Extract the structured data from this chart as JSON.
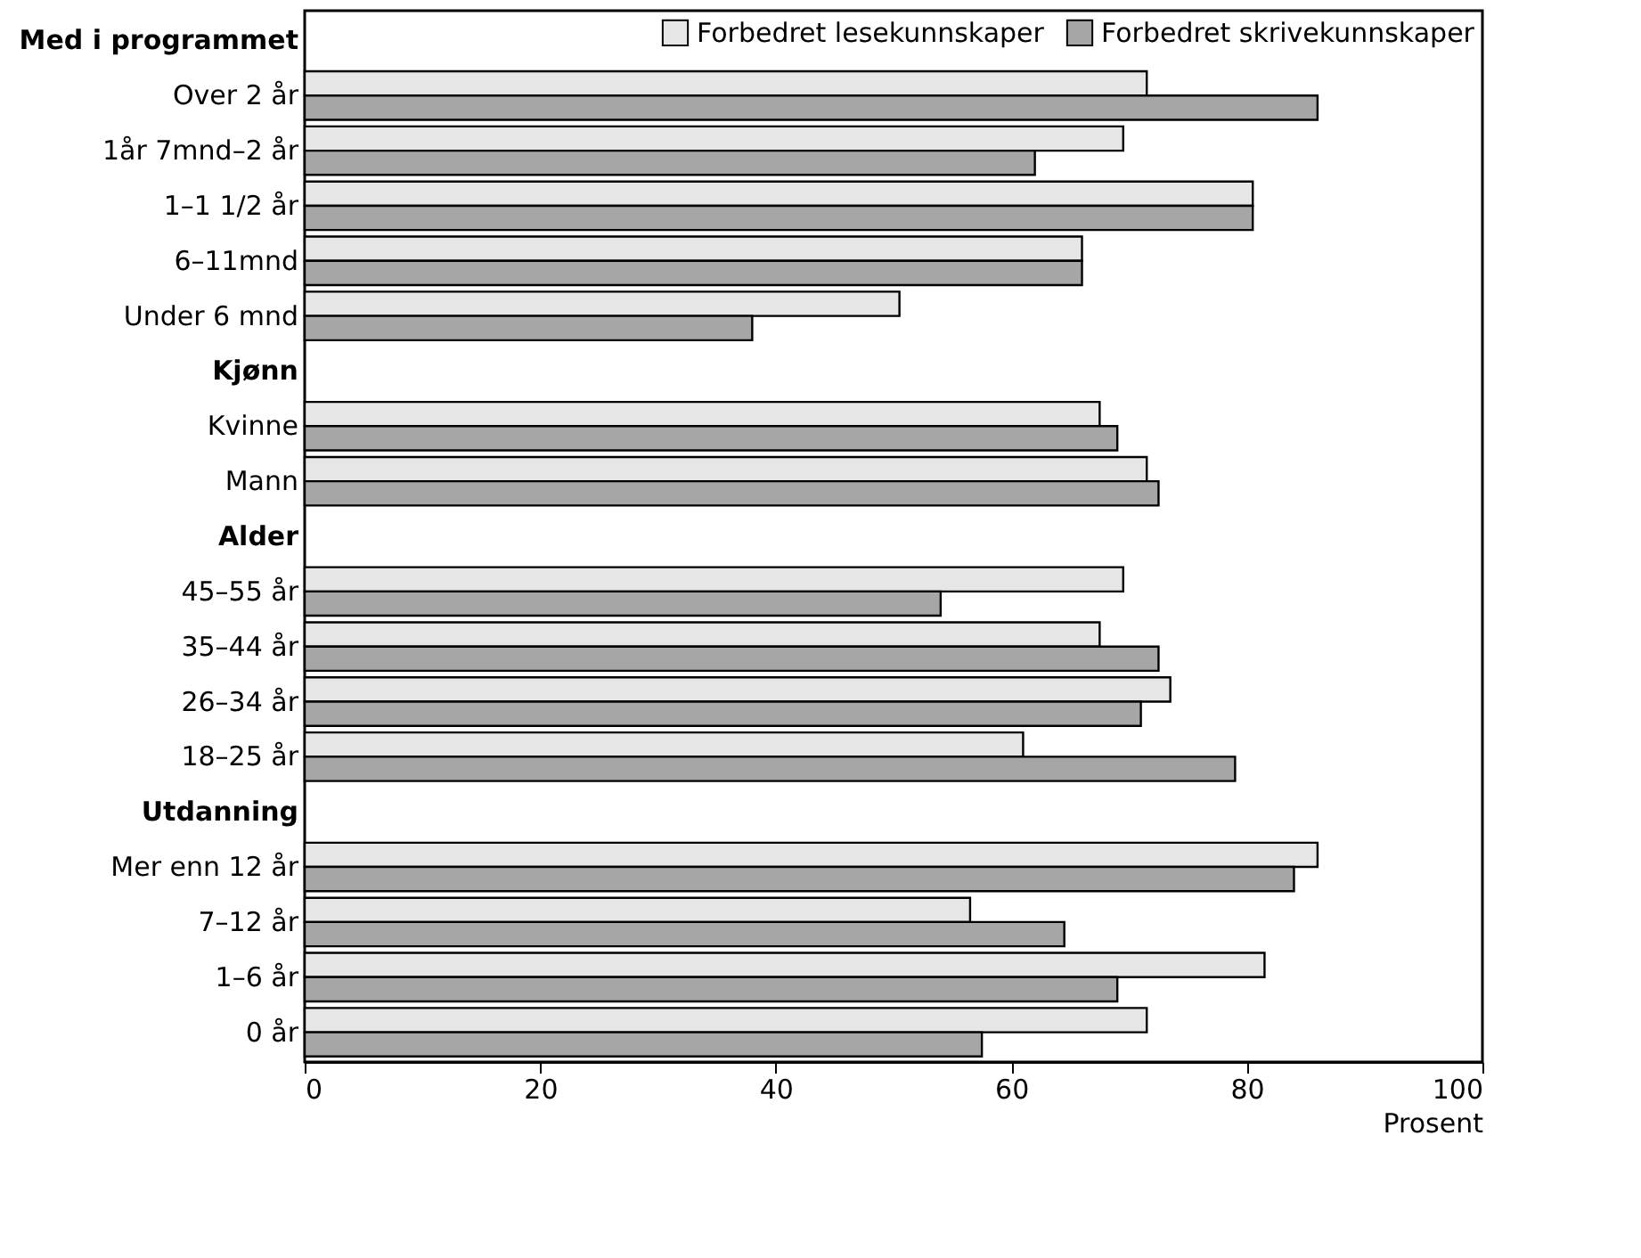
{
  "chart_data": {
    "type": "bar",
    "orientation": "horizontal",
    "xlabel": "Prosent",
    "categories": [
      "Med i programmet",
      "Over 2 år",
      "1år 7mnd–2 år",
      "1–1 1/2 år",
      "6–11mnd",
      "Under 6 mnd",
      "Kjønn",
      "Kvinne",
      "Mann",
      "Alder",
      "45–55 år",
      "35–44 år",
      "26–34 år",
      "18–25 år",
      "Utdanning",
      "Mer enn 12 år",
      "7–12 år",
      "1–6 år",
      "0 år"
    ],
    "series": [
      {
        "name": "Forbedret lesekunnskaper",
        "color": "#e6e6e6",
        "values": [
          null,
          71.5,
          69.5,
          80.5,
          66,
          50.5,
          null,
          67.5,
          71.5,
          null,
          69.5,
          67.5,
          73.5,
          61,
          null,
          86,
          56.5,
          81.5,
          71.5
        ]
      },
      {
        "name": "Forbedret skrivekunnskaper",
        "color": "#a6a6a6",
        "values": [
          null,
          86,
          62,
          80.5,
          66,
          38,
          null,
          69,
          72.5,
          null,
          54,
          72.5,
          71,
          79,
          null,
          84,
          64.5,
          69,
          57.5
        ]
      }
    ],
    "xlim": [
      0,
      100
    ],
    "xticks": [
      0,
      20,
      40,
      60,
      80,
      100
    ],
    "grid": false,
    "legend": "top right"
  }
}
